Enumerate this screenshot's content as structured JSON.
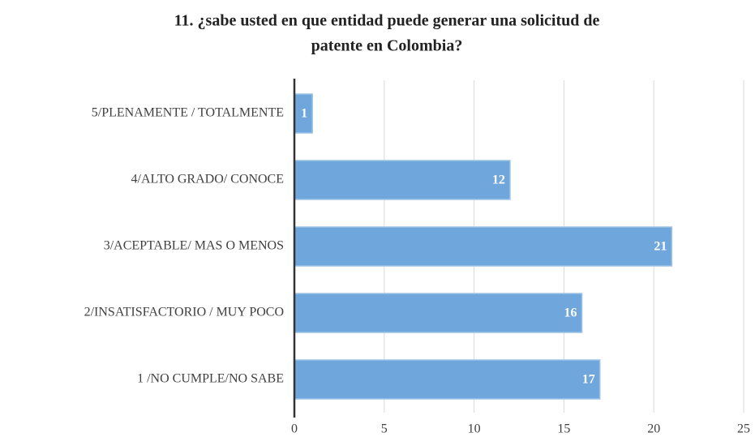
{
  "chart_data": {
    "type": "barh",
    "title": [
      "11. ¿sabe usted en que entidad puede generar una solicitud de",
      "patente en Colombia?"
    ],
    "categories": [
      "5/PLENAMENTE / TOTALMENTE",
      "4/ALTO GRADO/ CONOCE",
      "3/ACEPTABLE/ MAS O MENOS",
      "2/INSATISFACTORIO / MUY POCO",
      "1 /NO CUMPLE/NO SABE"
    ],
    "values": [
      1,
      12,
      21,
      16,
      17
    ],
    "color": "#6fa6db",
    "xlim": [
      0,
      25
    ],
    "xticks": [
      0,
      5,
      10,
      15,
      20,
      25
    ],
    "grid": true
  }
}
